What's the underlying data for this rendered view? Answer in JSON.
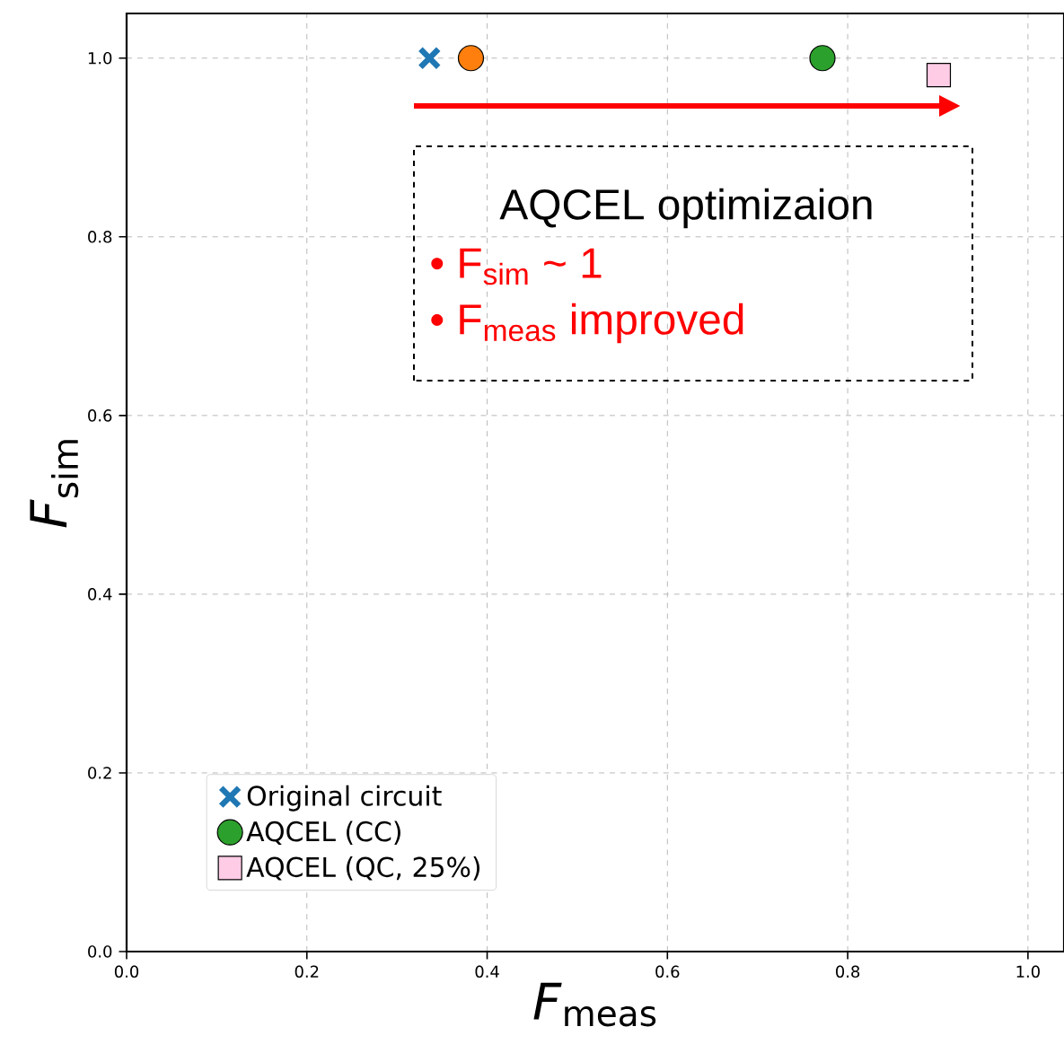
{
  "chart_data": {
    "type": "scatter",
    "xlabel": "*F*$_{meas}$",
    "ylabel": "*F*$_{sim}$",
    "xlim": [
      0,
      1.04
    ],
    "ylim": [
      0,
      1.05
    ],
    "xticks": [
      {
        "value": 0,
        "label": "0.0"
      },
      {
        "value": 0.2,
        "label": "0.2"
      },
      {
        "value": 0.4,
        "label": "0.4"
      },
      {
        "value": 0.6,
        "label": "0.6"
      },
      {
        "value": 0.8,
        "label": "0.8"
      },
      {
        "value": 1.0,
        "label": "1.0"
      }
    ],
    "yticks": [
      {
        "value": 0,
        "label": "0.0"
      },
      {
        "value": 0.2,
        "label": "0.2"
      },
      {
        "value": 0.4,
        "label": "0.4"
      },
      {
        "value": 0.6,
        "label": "0.6"
      },
      {
        "value": 0.8,
        "label": "0.8"
      },
      {
        "value": 1.0,
        "label": "1.0"
      }
    ],
    "grid": true,
    "legend": "bottom left",
    "annotations": [
      "AQCEL optimizaion",
      "•     F$_{sim}$ ~ 1",
      "•     F$_{meas}$ improved"
    ],
    "series": [
      {
        "name": "Original circuit",
        "color": "#1f77b4",
        "marker": "cross",
        "x": [
          0.336
        ],
        "values": [
          1.0
        ]
      },
      {
        "color": "#ff7f0e",
        "marker": "circle",
        "x": [
          0.382
        ],
        "values": [
          1.0
        ]
      },
      {
        "name": "AQCEL (CC)",
        "color": "#2ca02c",
        "marker": "circle",
        "x": [
          0.772
        ],
        "values": [
          1.0
        ]
      },
      {
        "name": "AQCEL (QC, 25%)",
        "color": "#ffcce6",
        "marker": "square",
        "x": [
          0.901
        ],
        "values": [
          0.981
        ]
      }
    ]
  }
}
